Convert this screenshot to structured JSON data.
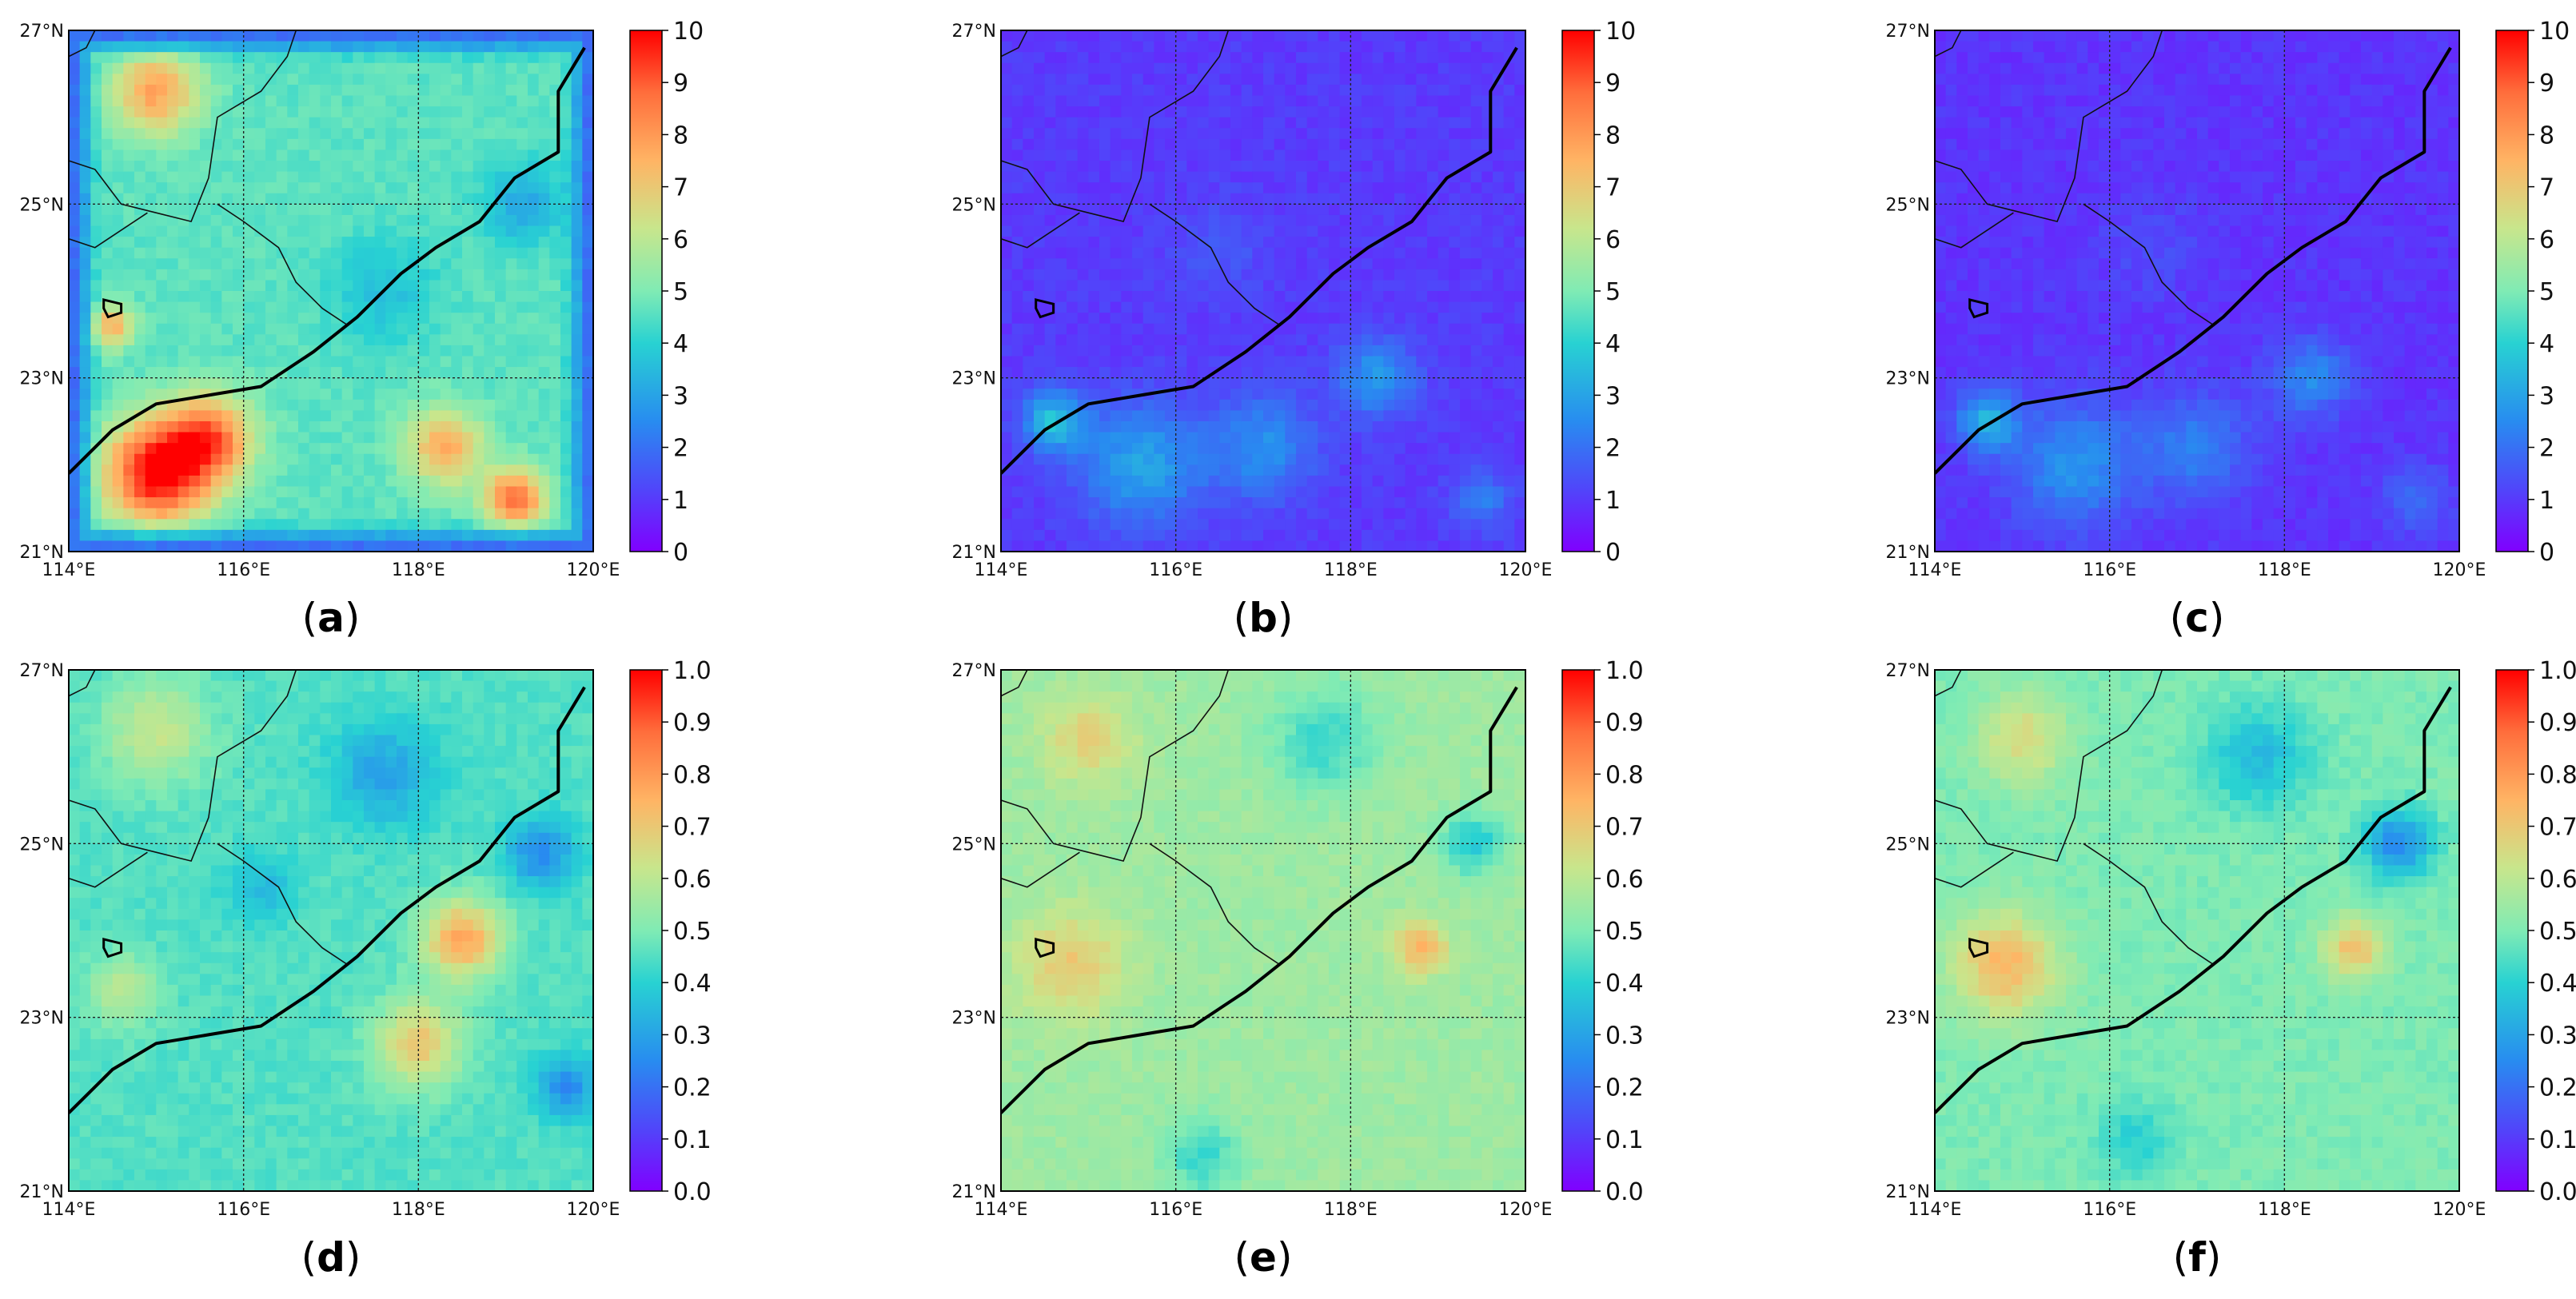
{
  "figure": {
    "type": "map-panels"
  },
  "chart_data": [
    {
      "type": "heatmap",
      "panel": "a",
      "caption_letter": "a",
      "xlabel": "",
      "ylabel": "",
      "x_ticks": [
        "114°E",
        "116°E",
        "118°E",
        "120°E"
      ],
      "y_ticks": [
        "21°N",
        "23°N",
        "25°N",
        "27°N"
      ],
      "xlim": [
        114,
        120
      ],
      "ylim": [
        21,
        27
      ],
      "colorbar": {
        "min": 0,
        "max": 10,
        "ticks": [
          "0",
          "1",
          "2",
          "3",
          "4",
          "5",
          "6",
          "7",
          "8",
          "9",
          "10"
        ]
      },
      "background_value": 4.6,
      "edge_falloff": true,
      "field_blobs": [
        {
          "lon": 115.0,
          "lat": 21.9,
          "value": 10.0,
          "r": 0.6
        },
        {
          "lon": 115.6,
          "lat": 22.3,
          "value": 8.6,
          "r": 0.5
        },
        {
          "lon": 118.3,
          "lat": 22.2,
          "value": 7.6,
          "r": 0.45
        },
        {
          "lon": 119.1,
          "lat": 21.6,
          "value": 8.8,
          "r": 0.35
        },
        {
          "lon": 115.0,
          "lat": 26.3,
          "value": 7.8,
          "r": 0.5
        },
        {
          "lon": 114.5,
          "lat": 23.6,
          "value": 7.5,
          "r": 0.25
        },
        {
          "lon": 117.6,
          "lat": 24.0,
          "value": 3.6,
          "r": 0.6
        },
        {
          "lon": 119.2,
          "lat": 25.0,
          "value": 3.0,
          "r": 0.45
        }
      ]
    },
    {
      "type": "heatmap",
      "panel": "b",
      "caption_letter": "b",
      "xlabel": "",
      "ylabel": "",
      "x_ticks": [
        "114°E",
        "116°E",
        "118°E",
        "120°E"
      ],
      "y_ticks": [
        "21°N",
        "23°N",
        "25°N",
        "27°N"
      ],
      "xlim": [
        114,
        120
      ],
      "ylim": [
        21,
        27
      ],
      "colorbar": {
        "min": 0,
        "max": 10,
        "ticks": [
          "0",
          "1",
          "2",
          "3",
          "4",
          "5",
          "6",
          "7",
          "8",
          "9",
          "10"
        ]
      },
      "background_value": 1.0,
      "edge_falloff": false,
      "field_blobs": [
        {
          "lon": 115.6,
          "lat": 22.0,
          "value": 3.0,
          "r": 0.7
        },
        {
          "lon": 114.6,
          "lat": 22.5,
          "value": 3.6,
          "r": 0.35
        },
        {
          "lon": 117.0,
          "lat": 22.2,
          "value": 2.6,
          "r": 0.6
        },
        {
          "lon": 118.3,
          "lat": 23.0,
          "value": 2.8,
          "r": 0.45
        },
        {
          "lon": 119.5,
          "lat": 21.6,
          "value": 2.2,
          "r": 0.35
        },
        {
          "lon": 116.5,
          "lat": 24.5,
          "value": 1.5,
          "r": 0.6
        }
      ]
    },
    {
      "type": "heatmap",
      "panel": "c",
      "caption_letter": "c",
      "xlabel": "",
      "ylabel": "",
      "x_ticks": [
        "114°E",
        "116°E",
        "118°E",
        "120°E"
      ],
      "y_ticks": [
        "21°N",
        "23°N",
        "25°N",
        "27°N"
      ],
      "xlim": [
        114,
        120
      ],
      "ylim": [
        21,
        27
      ],
      "colorbar": {
        "min": 0,
        "max": 10,
        "ticks": [
          "0",
          "1",
          "2",
          "3",
          "4",
          "5",
          "6",
          "7",
          "8",
          "9",
          "10"
        ]
      },
      "background_value": 0.9,
      "edge_falloff": false,
      "field_blobs": [
        {
          "lon": 115.6,
          "lat": 22.0,
          "value": 2.7,
          "r": 0.7
        },
        {
          "lon": 114.6,
          "lat": 22.5,
          "value": 3.3,
          "r": 0.35
        },
        {
          "lon": 117.0,
          "lat": 22.2,
          "value": 2.3,
          "r": 0.6
        },
        {
          "lon": 118.3,
          "lat": 23.0,
          "value": 2.5,
          "r": 0.45
        },
        {
          "lon": 119.5,
          "lat": 21.6,
          "value": 2.0,
          "r": 0.35
        },
        {
          "lon": 116.5,
          "lat": 24.5,
          "value": 1.3,
          "r": 0.6
        }
      ]
    },
    {
      "type": "heatmap",
      "panel": "d",
      "caption_letter": "d",
      "xlabel": "",
      "ylabel": "",
      "x_ticks": [
        "114°E",
        "116°E",
        "118°E",
        "120°E"
      ],
      "y_ticks": [
        "21°N",
        "23°N",
        "25°N",
        "27°N"
      ],
      "xlim": [
        114,
        120
      ],
      "ylim": [
        21,
        27
      ],
      "colorbar": {
        "min": 0.0,
        "max": 1.0,
        "ticks": [
          "0.0",
          "0.1",
          "0.2",
          "0.3",
          "0.4",
          "0.5",
          "0.6",
          "0.7",
          "0.8",
          "0.9",
          "1.0"
        ]
      },
      "background_value": 0.45,
      "edge_falloff": false,
      "field_blobs": [
        {
          "lon": 118.5,
          "lat": 23.9,
          "value": 0.78,
          "r": 0.45
        },
        {
          "lon": 118.0,
          "lat": 22.7,
          "value": 0.7,
          "r": 0.5
        },
        {
          "lon": 115.0,
          "lat": 26.3,
          "value": 0.62,
          "r": 0.6
        },
        {
          "lon": 114.6,
          "lat": 23.3,
          "value": 0.6,
          "r": 0.4
        },
        {
          "lon": 117.6,
          "lat": 25.8,
          "value": 0.3,
          "r": 0.6
        },
        {
          "lon": 119.4,
          "lat": 24.9,
          "value": 0.25,
          "r": 0.4
        },
        {
          "lon": 119.7,
          "lat": 22.2,
          "value": 0.25,
          "r": 0.35
        },
        {
          "lon": 116.2,
          "lat": 24.5,
          "value": 0.35,
          "r": 0.4
        }
      ]
    },
    {
      "type": "heatmap",
      "panel": "e",
      "caption_letter": "e",
      "xlabel": "",
      "ylabel": "",
      "x_ticks": [
        "114°E",
        "116°E",
        "118°E",
        "120°E"
      ],
      "y_ticks": [
        "21°N",
        "23°N",
        "25°N",
        "27°N"
      ],
      "xlim": [
        114,
        120
      ],
      "ylim": [
        21,
        27
      ],
      "colorbar": {
        "min": 0.0,
        "max": 1.0,
        "ticks": [
          "0.0",
          "0.1",
          "0.2",
          "0.3",
          "0.4",
          "0.5",
          "0.6",
          "0.7",
          "0.8",
          "0.9",
          "1.0"
        ]
      },
      "background_value": 0.55,
      "edge_falloff": false,
      "field_blobs": [
        {
          "lon": 114.8,
          "lat": 23.6,
          "value": 0.7,
          "r": 0.6
        },
        {
          "lon": 118.8,
          "lat": 23.8,
          "value": 0.75,
          "r": 0.3
        },
        {
          "lon": 115.0,
          "lat": 26.2,
          "value": 0.68,
          "r": 0.5
        },
        {
          "lon": 117.7,
          "lat": 26.2,
          "value": 0.42,
          "r": 0.6
        },
        {
          "lon": 119.4,
          "lat": 25.0,
          "value": 0.38,
          "r": 0.35
        },
        {
          "lon": 116.3,
          "lat": 21.4,
          "value": 0.42,
          "r": 0.45
        }
      ]
    },
    {
      "type": "heatmap",
      "panel": "f",
      "caption_letter": "f",
      "xlabel": "",
      "ylabel": "",
      "x_ticks": [
        "114°E",
        "116°E",
        "118°E",
        "120°E"
      ],
      "y_ticks": [
        "21°N",
        "23°N",
        "25°N",
        "27°N"
      ],
      "xlim": [
        114,
        120
      ],
      "ylim": [
        21,
        27
      ],
      "colorbar": {
        "min": 0.0,
        "max": 1.0,
        "ticks": [
          "0.0",
          "0.1",
          "0.2",
          "0.3",
          "0.4",
          "0.5",
          "0.6",
          "0.7",
          "0.8",
          "0.9",
          "1.0"
        ]
      },
      "background_value": 0.5,
      "edge_falloff": false,
      "field_blobs": [
        {
          "lon": 114.8,
          "lat": 23.6,
          "value": 0.74,
          "r": 0.6
        },
        {
          "lon": 118.8,
          "lat": 23.8,
          "value": 0.72,
          "r": 0.35
        },
        {
          "lon": 115.0,
          "lat": 26.2,
          "value": 0.66,
          "r": 0.5
        },
        {
          "lon": 117.7,
          "lat": 26.0,
          "value": 0.35,
          "r": 0.6
        },
        {
          "lon": 119.3,
          "lat": 25.0,
          "value": 0.25,
          "r": 0.4
        },
        {
          "lon": 116.3,
          "lat": 21.6,
          "value": 0.4,
          "r": 0.45
        }
      ]
    }
  ],
  "coastline": [
    [
      114.0,
      21.9
    ],
    [
      114.5,
      22.4
    ],
    [
      115.0,
      22.7
    ],
    [
      115.6,
      22.8
    ],
    [
      116.2,
      22.9
    ],
    [
      116.8,
      23.3
    ],
    [
      117.3,
      23.7
    ],
    [
      117.8,
      24.2
    ],
    [
      118.2,
      24.5
    ],
    [
      118.7,
      24.8
    ],
    [
      119.1,
      25.3
    ],
    [
      119.6,
      25.6
    ],
    [
      119.6,
      26.3
    ],
    [
      119.9,
      26.8
    ]
  ],
  "provincial_borders": [
    [
      [
        114.0,
        25.5
      ],
      [
        114.3,
        25.4
      ],
      [
        114.6,
        25.0
      ],
      [
        115.0,
        24.9
      ],
      [
        115.4,
        24.8
      ],
      [
        115.6,
        25.3
      ],
      [
        115.7,
        26.0
      ],
      [
        116.2,
        26.3
      ],
      [
        116.5,
        26.7
      ],
      [
        116.6,
        27.0
      ]
    ],
    [
      [
        115.7,
        25.0
      ],
      [
        116.0,
        24.8
      ],
      [
        116.4,
        24.5
      ],
      [
        116.6,
        24.1
      ],
      [
        116.9,
        23.8
      ],
      [
        117.2,
        23.6
      ]
    ],
    [
      [
        114.0,
        24.6
      ],
      [
        114.3,
        24.5
      ],
      [
        114.6,
        24.7
      ],
      [
        114.9,
        24.9
      ]
    ],
    [
      [
        114.0,
        26.7
      ],
      [
        114.2,
        26.8
      ],
      [
        114.3,
        27.0
      ]
    ]
  ],
  "islands": [
    [
      [
        114.4,
        23.9
      ],
      [
        114.6,
        23.85
      ],
      [
        114.6,
        23.75
      ],
      [
        114.45,
        23.7
      ],
      [
        114.4,
        23.8
      ]
    ]
  ]
}
